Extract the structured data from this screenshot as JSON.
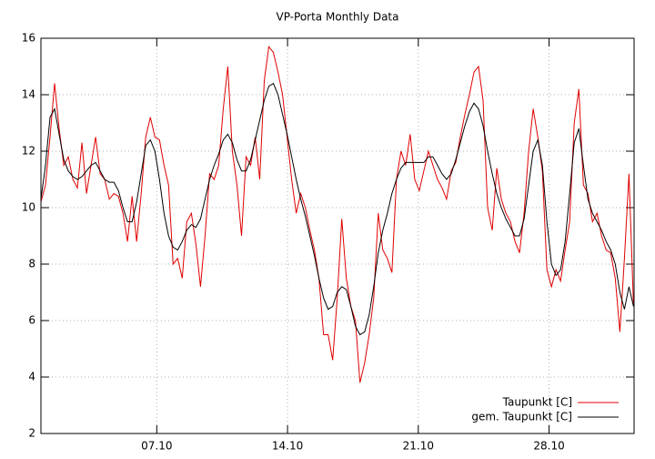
{
  "chart_data": {
    "type": "line",
    "title": "VP-Porta Monthly Data",
    "x": [
      0.8,
      1.044,
      1.288,
      1.532,
      1.776,
      2.02,
      2.264,
      2.508,
      2.752,
      2.996,
      3.24,
      3.484,
      3.728,
      3.972,
      4.216,
      4.46,
      4.704,
      4.948,
      5.192,
      5.436,
      5.68,
      5.924,
      6.168,
      6.412,
      6.656,
      6.9,
      7.144,
      7.388,
      7.632,
      7.876,
      8.12,
      8.364,
      8.608,
      8.852,
      9.096,
      9.34,
      9.584,
      9.828,
      10.072,
      10.316,
      10.56,
      10.804,
      11.048,
      11.292,
      11.536,
      11.78,
      12.024,
      12.268,
      12.512,
      12.756,
      13.0,
      13.244,
      13.488,
      13.732,
      13.976,
      14.22,
      14.464,
      14.708,
      14.952,
      15.196,
      15.44,
      15.684,
      15.928,
      16.172,
      16.416,
      16.66,
      16.904,
      17.148,
      17.392,
      17.636,
      17.88,
      18.124,
      18.368,
      18.612,
      18.856,
      19.1,
      19.344,
      19.588,
      19.832,
      20.076,
      20.32,
      20.564,
      20.808,
      21.052,
      21.296,
      21.54,
      21.784,
      22.028,
      22.272,
      22.516,
      22.76,
      23.004,
      23.248,
      23.492,
      23.736,
      23.98,
      24.224,
      24.468,
      24.712,
      24.956,
      25.2,
      25.444,
      25.688,
      25.932,
      26.176,
      26.42,
      26.664,
      26.908,
      27.152,
      27.396,
      27.64,
      27.884,
      28.128,
      28.372,
      28.616,
      28.86,
      29.104,
      29.348,
      29.592,
      29.836,
      30.08,
      30.324,
      30.568,
      30.812,
      31.056,
      31.3,
      31.544,
      31.788,
      32.032,
      32.276,
      32.52
    ],
    "series": [
      {
        "name": "Taupunkt [C]",
        "color": "#e00000",
        "values": [
          10.2,
          10.8,
          12.5,
          14.4,
          12.8,
          11.5,
          11.8,
          11.0,
          10.7,
          12.3,
          10.5,
          11.5,
          12.5,
          11.2,
          11.0,
          10.3,
          10.5,
          10.4,
          9.8,
          8.8,
          10.4,
          8.8,
          10.5,
          12.5,
          13.2,
          12.5,
          12.4,
          11.5,
          10.8,
          8.0,
          8.2,
          7.5,
          9.5,
          9.8,
          8.7,
          7.2,
          9.0,
          11.2,
          11.0,
          11.5,
          13.5,
          15.0,
          12.0,
          10.8,
          9.0,
          11.8,
          11.5,
          12.5,
          11.0,
          14.5,
          15.7,
          15.5,
          14.8,
          14.0,
          12.5,
          11.0,
          9.8,
          10.5,
          10.0,
          9.2,
          8.5,
          7.5,
          5.5,
          5.5,
          4.6,
          6.8,
          9.6,
          7.5,
          6.5,
          6.0,
          3.8,
          4.5,
          5.5,
          6.8,
          9.8,
          8.5,
          8.2,
          7.7,
          11.0,
          12.0,
          11.5,
          12.6,
          11.0,
          10.6,
          11.3,
          12.0,
          11.5,
          11.0,
          10.7,
          10.3,
          11.3,
          11.6,
          12.5,
          13.3,
          14.0,
          14.8,
          15.0,
          13.8,
          10.0,
          9.2,
          11.4,
          10.3,
          9.8,
          9.5,
          8.8,
          8.4,
          9.8,
          12.0,
          13.5,
          12.5,
          11.3,
          7.8,
          7.2,
          7.8,
          7.4,
          8.5,
          9.5,
          13.0,
          14.2,
          10.8,
          10.5,
          9.5,
          9.8,
          9.0,
          8.5,
          8.4,
          7.5,
          5.6,
          8.2,
          11.2,
          6.5
        ]
      },
      {
        "name": "gem. Taupunkt [C]",
        "color": "#000000",
        "values": [
          10.3,
          11.5,
          13.2,
          13.5,
          12.6,
          11.7,
          11.3,
          11.1,
          11.0,
          11.1,
          11.3,
          11.5,
          11.6,
          11.3,
          11.0,
          10.9,
          10.9,
          10.6,
          10.0,
          9.5,
          9.5,
          10.2,
          11.2,
          12.2,
          12.4,
          12.0,
          11.0,
          9.8,
          9.0,
          8.6,
          8.5,
          8.8,
          9.2,
          9.4,
          9.3,
          9.6,
          10.3,
          11.0,
          11.5,
          11.9,
          12.4,
          12.6,
          12.3,
          11.7,
          11.3,
          11.3,
          11.7,
          12.4,
          13.1,
          13.8,
          14.3,
          14.4,
          14.0,
          13.3,
          12.6,
          11.8,
          11.0,
          10.3,
          9.7,
          9.0,
          8.3,
          7.5,
          6.8,
          6.4,
          6.5,
          7.0,
          7.2,
          7.1,
          6.5,
          5.8,
          5.5,
          5.6,
          6.2,
          7.2,
          8.4,
          9.2,
          9.8,
          10.5,
          11.0,
          11.4,
          11.6,
          11.6,
          11.6,
          11.6,
          11.6,
          11.8,
          11.8,
          11.5,
          11.2,
          11.0,
          11.2,
          11.7,
          12.3,
          12.9,
          13.4,
          13.7,
          13.5,
          12.9,
          12.0,
          11.2,
          10.5,
          10.0,
          9.6,
          9.3,
          9.0,
          9.0,
          9.6,
          10.8,
          12.0,
          12.4,
          11.5,
          9.5,
          8.0,
          7.6,
          7.8,
          8.8,
          10.5,
          12.3,
          12.8,
          11.5,
          10.3,
          9.8,
          9.5,
          9.2,
          8.8,
          8.5,
          8.0,
          7.0,
          6.4,
          7.2,
          6.5
        ]
      }
    ],
    "xlim": [
      0.8,
      32.55
    ],
    "xticks": [
      {
        "value": 7,
        "label": "07.10"
      },
      {
        "value": 14,
        "label": "14.10"
      },
      {
        "value": 21,
        "label": "21.10"
      },
      {
        "value": 28,
        "label": "28.10"
      }
    ],
    "ylim": [
      2,
      16
    ],
    "yticks": [
      2,
      4,
      6,
      8,
      10,
      12,
      14,
      16
    ],
    "grid": true,
    "legend": "bottom-right"
  }
}
